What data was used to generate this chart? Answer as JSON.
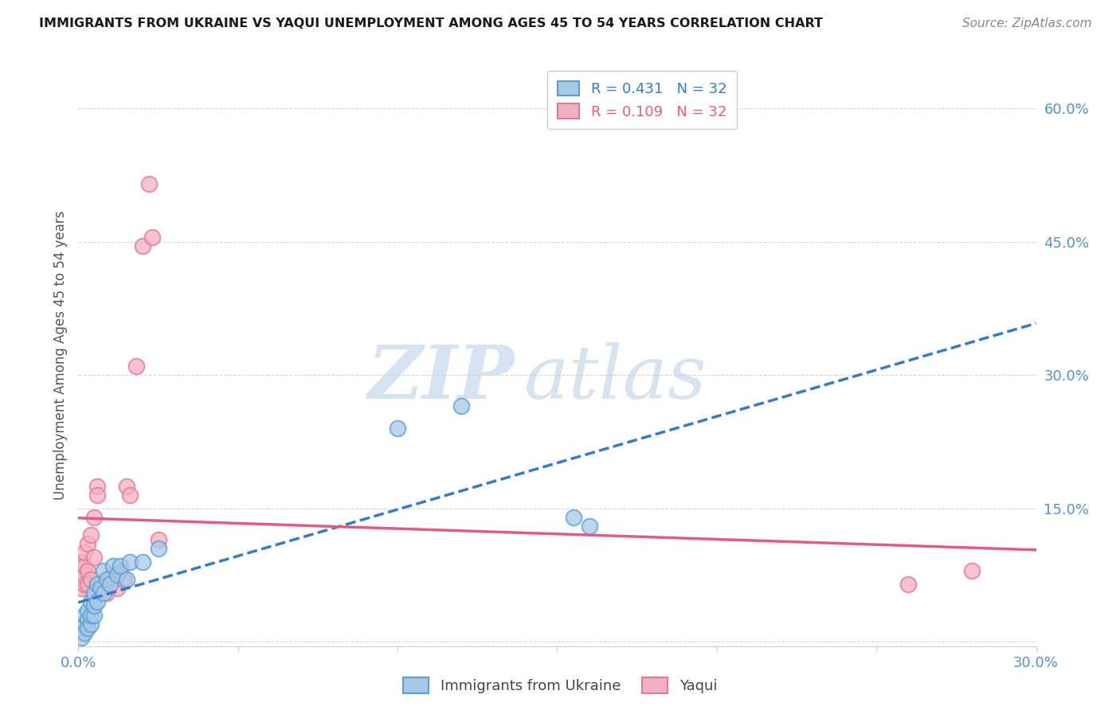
{
  "title": "IMMIGRANTS FROM UKRAINE VS YAQUI UNEMPLOYMENT AMONG AGES 45 TO 54 YEARS CORRELATION CHART",
  "source": "Source: ZipAtlas.com",
  "ylabel": "Unemployment Among Ages 45 to 54 years",
  "xlim": [
    0.0,
    0.3
  ],
  "ylim": [
    -0.005,
    0.65
  ],
  "xticks": [
    0.0,
    0.05,
    0.1,
    0.15,
    0.2,
    0.25,
    0.3
  ],
  "yticks_right": [
    0.0,
    0.15,
    0.3,
    0.45,
    0.6
  ],
  "ytick_labels_right": [
    "",
    "15.0%",
    "30.0%",
    "45.0%",
    "60.0%"
  ],
  "xtick_labels": [
    "0.0%",
    "",
    "",
    "",
    "",
    "",
    "30.0%"
  ],
  "blue_fill": "#a8c8e8",
  "blue_edge": "#5a9fd4",
  "pink_fill": "#f4b0c0",
  "pink_edge": "#e07898",
  "trend_blue_color": "#3a7abf",
  "trend_pink_color": "#e05c80",
  "watermark_zip_color": "#c0d4ee",
  "watermark_atlas_color": "#b8cce4",
  "background_color": "#ffffff",
  "grid_color": "#d8d8d8",
  "title_color": "#1a1a1a",
  "source_color": "#888888",
  "tick_color": "#5a8fc4",
  "ylabel_color": "#555555",
  "legend1_color": "#3a7abf",
  "legend2_color": "#e05c80",
  "scatter_blue_x": [
    0.001,
    0.001,
    0.002,
    0.002,
    0.002,
    0.003,
    0.003,
    0.003,
    0.004,
    0.004,
    0.004,
    0.005,
    0.005,
    0.005,
    0.006,
    0.006,
    0.007,
    0.008,
    0.008,
    0.009,
    0.01,
    0.011,
    0.012,
    0.013,
    0.015,
    0.016,
    0.02,
    0.025,
    0.1,
    0.12,
    0.155,
    0.16
  ],
  "scatter_blue_y": [
    0.005,
    0.015,
    0.02,
    0.01,
    0.03,
    0.025,
    0.015,
    0.035,
    0.02,
    0.03,
    0.045,
    0.03,
    0.055,
    0.04,
    0.045,
    0.065,
    0.06,
    0.055,
    0.08,
    0.07,
    0.065,
    0.085,
    0.075,
    0.085,
    0.07,
    0.09,
    0.09,
    0.105,
    0.24,
    0.265,
    0.14,
    0.13
  ],
  "scatter_pink_x": [
    0.001,
    0.001,
    0.001,
    0.002,
    0.002,
    0.002,
    0.003,
    0.003,
    0.003,
    0.004,
    0.004,
    0.005,
    0.005,
    0.006,
    0.006,
    0.007,
    0.008,
    0.009,
    0.01,
    0.011,
    0.012,
    0.013,
    0.014,
    0.015,
    0.016,
    0.018,
    0.02,
    0.022,
    0.023,
    0.025,
    0.26,
    0.28
  ],
  "scatter_pink_y": [
    0.06,
    0.09,
    0.075,
    0.065,
    0.085,
    0.1,
    0.08,
    0.11,
    0.065,
    0.12,
    0.07,
    0.14,
    0.095,
    0.175,
    0.165,
    0.065,
    0.06,
    0.055,
    0.07,
    0.075,
    0.06,
    0.08,
    0.07,
    0.175,
    0.165,
    0.31,
    0.445,
    0.515,
    0.455,
    0.115,
    0.065,
    0.08
  ]
}
